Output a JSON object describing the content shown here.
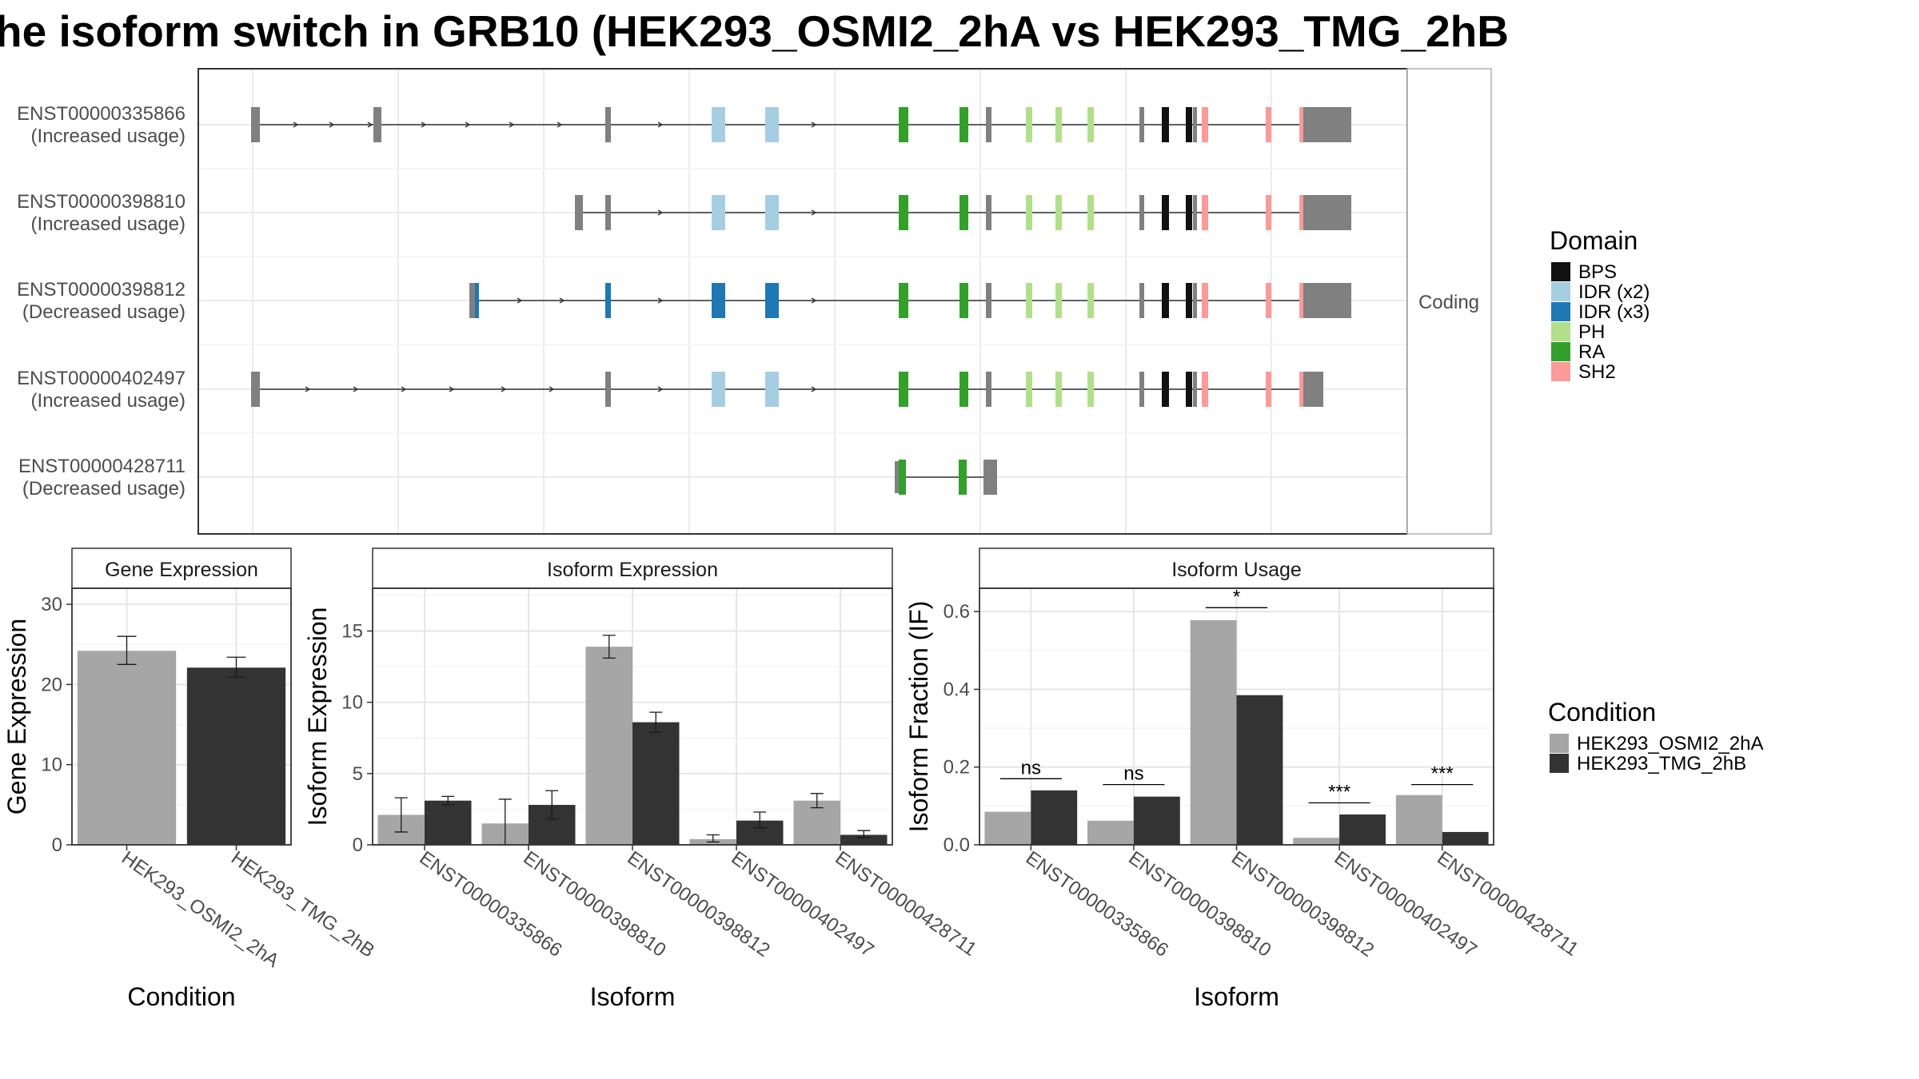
{
  "title": "he isoform switch in GRB10 (HEK293_OSMI2_2hA vs HEK293_TMG_2hB",
  "structure": {
    "facet_label": "Coding",
    "transcripts": [
      {
        "id": "ENST00000335866",
        "usage": "(Increased usage)"
      },
      {
        "id": "ENST00000398810",
        "usage": "(Increased usage)"
      },
      {
        "id": "ENST00000398812",
        "usage": "(Decreased usage)"
      },
      {
        "id": "ENST00000402497",
        "usage": "(Increased usage)"
      },
      {
        "id": "ENST00000428711",
        "usage": "(Decreased usage)"
      }
    ]
  },
  "legend_domain": {
    "title": "Domain",
    "items": [
      {
        "label": "BPS",
        "color": "#111111"
      },
      {
        "label": "IDR (x2)",
        "color": "#a6cee3"
      },
      {
        "label": "IDR (x3)",
        "color": "#1f78b4"
      },
      {
        "label": "PH",
        "color": "#b2df8a"
      },
      {
        "label": "RA",
        "color": "#33a02c"
      },
      {
        "label": "SH2",
        "color": "#fb9a99"
      }
    ]
  },
  "legend_condition": {
    "title": "Condition",
    "items": [
      {
        "label": "HEK293_OSMI2_2hA",
        "color": "#a6a6a6"
      },
      {
        "label": "HEK293_TMG_2hB",
        "color": "#333333"
      }
    ]
  },
  "chart_data": [
    {
      "type": "bar",
      "panel": "Gene Expression",
      "xlabel": "Condition",
      "ylabel": "Gene Expression",
      "ylim": [
        0,
        32
      ],
      "yticks": [
        0,
        10,
        20,
        30
      ],
      "categories": [
        "HEK293_OSMI2_2hA",
        "HEK293_TMG_2hB"
      ],
      "series": [
        {
          "name": "HEK293_OSMI2_2hA",
          "values": [
            24.2,
            null
          ],
          "err_low": [
            22.5,
            null
          ],
          "err_high": [
            26.0,
            null
          ]
        },
        {
          "name": "HEK293_TMG_2hB",
          "values": [
            null,
            22.1
          ],
          "err_low": [
            null,
            20.9
          ],
          "err_high": [
            null,
            23.4
          ]
        }
      ]
    },
    {
      "type": "bar",
      "panel": "Isoform Expression",
      "xlabel": "Isoform",
      "ylabel": "Isoform Expression",
      "ylim": [
        0,
        18
      ],
      "yticks": [
        0,
        5,
        10,
        15
      ],
      "categories": [
        "ENST00000335866",
        "ENST00000398810",
        "ENST00000398812",
        "ENST00000402497",
        "ENST00000428711"
      ],
      "series": [
        {
          "name": "HEK293_OSMI2_2hA",
          "values": [
            2.1,
            1.5,
            13.9,
            0.4,
            3.1
          ],
          "err_low": [
            0.9,
            0.0,
            13.1,
            0.2,
            2.6
          ],
          "err_high": [
            3.3,
            3.2,
            14.7,
            0.7,
            3.6
          ]
        },
        {
          "name": "HEK293_TMG_2hB",
          "values": [
            3.1,
            2.8,
            8.6,
            1.7,
            0.7
          ],
          "err_low": [
            2.8,
            1.8,
            7.9,
            1.2,
            0.5
          ],
          "err_high": [
            3.4,
            3.8,
            9.3,
            2.3,
            1.0
          ]
        }
      ]
    },
    {
      "type": "bar",
      "panel": "Isoform Usage",
      "xlabel": "Isoform",
      "ylabel": "Isoform Fraction (IF)",
      "ylim": [
        0,
        0.66
      ],
      "yticks": [
        0.0,
        0.2,
        0.4,
        0.6
      ],
      "ytick_labels": [
        "0.0",
        "0.2",
        "0.4",
        "0.6"
      ],
      "categories": [
        "ENST00000335866",
        "ENST00000398810",
        "ENST00000398812",
        "ENST00000402497",
        "ENST00000428711"
      ],
      "series": [
        {
          "name": "HEK293_OSMI2_2hA",
          "values": [
            0.085,
            0.062,
            0.578,
            0.018,
            0.128
          ]
        },
        {
          "name": "HEK293_TMG_2hB",
          "values": [
            0.14,
            0.124,
            0.385,
            0.078,
            0.033
          ]
        }
      ],
      "significance": [
        "ns",
        "ns",
        "*",
        "***",
        "***"
      ],
      "significance_level": [
        0.17,
        0.155,
        0.61,
        0.108,
        0.155
      ]
    }
  ]
}
